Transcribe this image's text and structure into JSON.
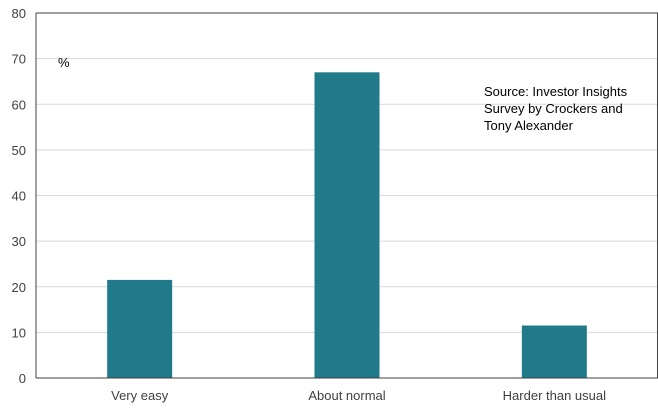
{
  "chart_data": {
    "type": "bar",
    "categories": [
      "Very easy",
      "About normal",
      "Harder than usual"
    ],
    "values": [
      21.5,
      67,
      11.5
    ],
    "ylim": [
      0,
      80
    ],
    "yticks": [
      0,
      10,
      20,
      30,
      40,
      50,
      60,
      70,
      80
    ],
    "unit_label": "%",
    "annotation_lines": [
      "Source: Investor Insights",
      "Survey by Crockers and",
      "Tony Alexander"
    ],
    "grid": true,
    "legend": "none",
    "bar_color": "#207a8a",
    "grid_color": "#d9d9d9",
    "axis_color": "#404040"
  }
}
